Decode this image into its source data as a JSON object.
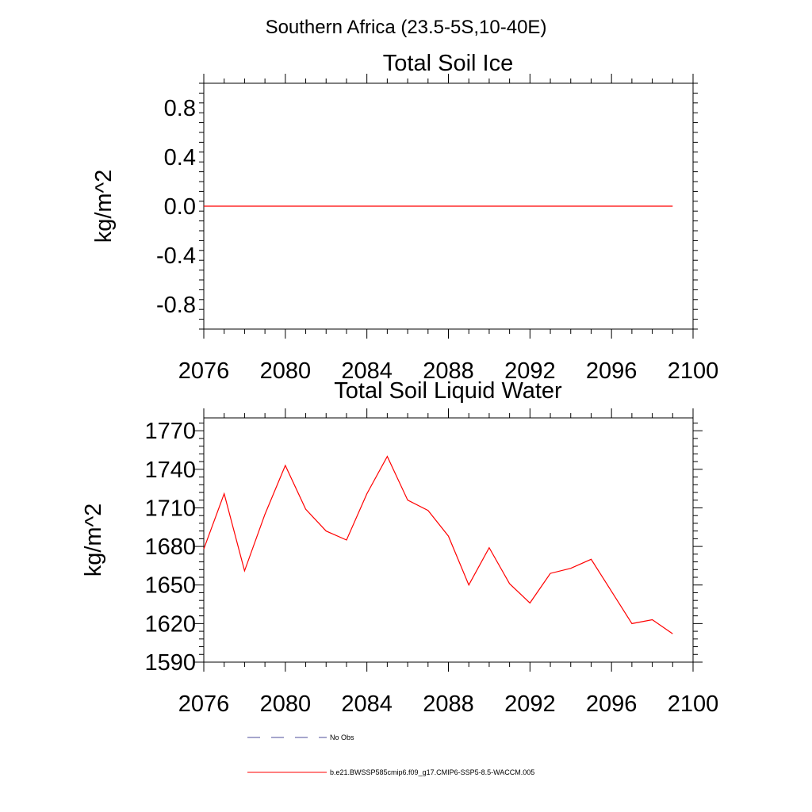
{
  "page_title": "Southern Africa (23.5-5S,10-40E)",
  "legend": {
    "items": [
      {
        "label": "No Obs",
        "style": "dashed",
        "color": "#4d4d99"
      },
      {
        "label": "b.e21.BWSSP585cmip6.f09_g17.CMIP6-SSP5-8.5-WACCM.005",
        "style": "solid",
        "color": "#ff0000"
      }
    ]
  },
  "chart_data": [
    {
      "type": "line",
      "title": "Total Soil Ice",
      "xlabel": "",
      "ylabel": "kg/m^2",
      "xlim": [
        2076,
        2100
      ],
      "ylim": [
        -1.0,
        1.0
      ],
      "x_ticks": [
        2076,
        2080,
        2084,
        2088,
        2092,
        2096,
        2100
      ],
      "x_tick_labels": [
        "2076",
        "2080",
        "2084",
        "2088",
        "2092",
        "2096",
        "2100"
      ],
      "y_ticks": [
        -0.8,
        -0.4,
        0.0,
        0.4,
        0.8
      ],
      "y_tick_labels": [
        "-0.8",
        "-0.4",
        "0.0",
        "0.4",
        "0.8"
      ],
      "grid": false,
      "series": [
        {
          "name": "b.e21.BWSSP585cmip6.f09_g17.CMIP6-SSP5-8.5-WACCM.005",
          "color": "#ff0000",
          "x": [
            2076,
            2077,
            2078,
            2079,
            2080,
            2081,
            2082,
            2083,
            2084,
            2085,
            2086,
            2087,
            2088,
            2089,
            2090,
            2091,
            2092,
            2093,
            2094,
            2095,
            2096,
            2097,
            2098,
            2099
          ],
          "values": [
            0,
            0,
            0,
            0,
            0,
            0,
            0,
            0,
            0,
            0,
            0,
            0,
            0,
            0,
            0,
            0,
            0,
            0,
            0,
            0,
            0,
            0,
            0,
            0
          ]
        }
      ]
    },
    {
      "type": "line",
      "title": "Total Soil Liquid Water",
      "xlabel": "",
      "ylabel": "kg/m^2",
      "xlim": [
        2076,
        2100
      ],
      "ylim": [
        1590,
        1780
      ],
      "x_ticks": [
        2076,
        2080,
        2084,
        2088,
        2092,
        2096,
        2100
      ],
      "x_tick_labels": [
        "2076",
        "2080",
        "2084",
        "2088",
        "2092",
        "2096",
        "2100"
      ],
      "y_ticks": [
        1590,
        1620,
        1650,
        1680,
        1710,
        1740,
        1770
      ],
      "y_tick_labels": [
        "1590",
        "1620",
        "1650",
        "1680",
        "1710",
        "1740",
        "1770"
      ],
      "grid": false,
      "series": [
        {
          "name": "b.e21.BWSSP585cmip6.f09_g17.CMIP6-SSP5-8.5-WACCM.005",
          "color": "#ff0000",
          "x": [
            2076,
            2077,
            2078,
            2079,
            2080,
            2081,
            2082,
            2083,
            2084,
            2085,
            2086,
            2087,
            2088,
            2089,
            2090,
            2091,
            2092,
            2093,
            2094,
            2095,
            2096,
            2097,
            2098,
            2099
          ],
          "values": [
            1678,
            1721,
            1661,
            1705,
            1743,
            1709,
            1692,
            1685,
            1721,
            1750,
            1716,
            1708,
            1688,
            1650,
            1679,
            1651,
            1636,
            1659,
            1663,
            1670,
            1645,
            1620,
            1623,
            1612
          ]
        }
      ]
    }
  ]
}
